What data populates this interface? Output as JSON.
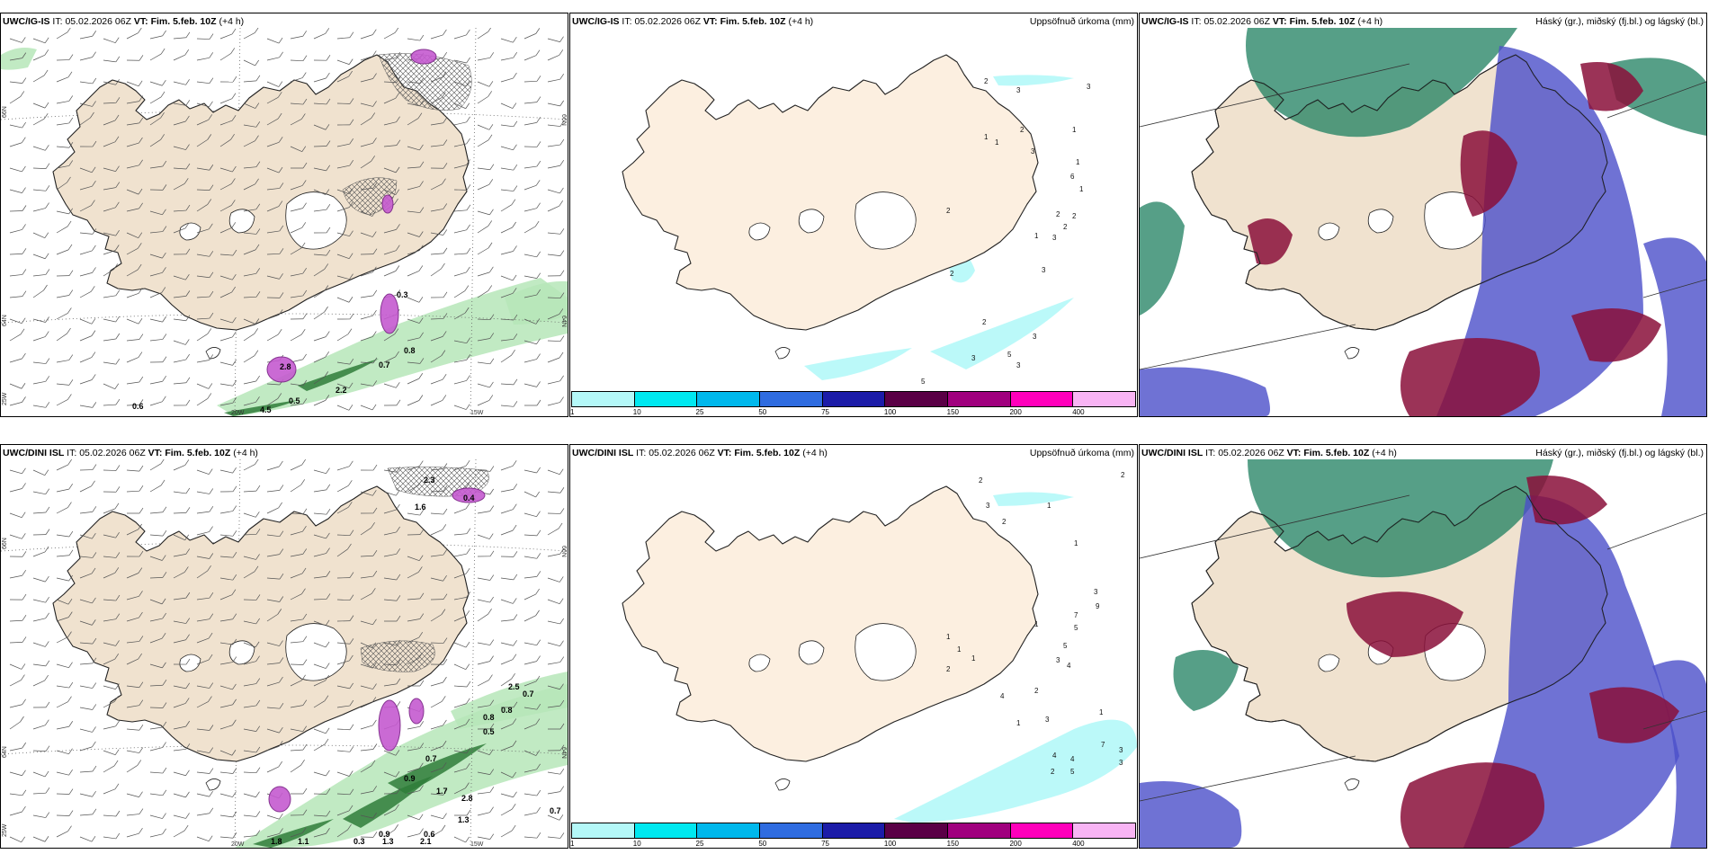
{
  "colors": {
    "land": "#f0e2cf",
    "land_precip": "#fcefe0",
    "snow": "#ffffff",
    "coast": "#222222",
    "precip_green": "#b6e6b8",
    "precip_green_dark": "#2f7d3a",
    "precip_magenta": "#c55ad0",
    "cloud_high": "#1e7f5f",
    "cloud_mid": "#8a0f3a",
    "cloud_low": "#4b4fc9"
  },
  "panels": [
    {
      "model": "UWC/IG-IS",
      "it_label": "IT:",
      "it_value": "05.02.2026 06Z",
      "vt_label": "VT:",
      "vt_value": "Fim. 5.feb. 10Z",
      "lead": "(+4 h)",
      "subtitle": "",
      "axis_labels": [
        "66N",
        "64N",
        "25W",
        "20W",
        "15W",
        "66N",
        "64N"
      ],
      "values": [
        "0.6",
        "0.5",
        "2.2",
        "0.7",
        "0.8",
        "2.8",
        "4.5",
        "0.3"
      ]
    },
    {
      "model": "UWC/IG-IS",
      "it_label": "IT:",
      "it_value": "05.02.2026 06Z",
      "vt_label": "VT:",
      "vt_value": "Fim. 5.feb. 10Z",
      "lead": "(+4 h)",
      "subtitle": "Uppsöfnuð úrkoma (mm)",
      "values": [
        "2",
        "3",
        "3",
        "1",
        "1",
        "2",
        "3",
        "1",
        "6",
        "1",
        "2",
        "2",
        "2",
        "1",
        "2",
        "3",
        "2",
        "3",
        "3",
        "3",
        "5",
        "3",
        "5",
        "2",
        "1"
      ]
    },
    {
      "model": "UWC/IG-IS",
      "it_label": "IT:",
      "it_value": "05.02.2026 06Z",
      "vt_label": "VT:",
      "vt_value": "Fim. 5.feb. 10Z",
      "lead": "(+4 h)",
      "subtitle": "Háský (gr.), miðský (fj.bl.) og lágský (bl.)"
    },
    {
      "model": "UWC/DINI ISL",
      "it_label": "IT:",
      "it_value": "05.02.2026 06Z",
      "vt_label": "VT:",
      "vt_value": "Fim. 5.feb. 10Z",
      "lead": "(+4 h)",
      "subtitle": "",
      "axis_labels": [
        "66N",
        "64N",
        "25W",
        "20W",
        "15W",
        "66N",
        "64N"
      ],
      "values": [
        "2.3",
        "1.6",
        "0.4",
        "2.5",
        "0.7",
        "0.8",
        "0.5",
        "0.8",
        "0.7",
        "0.9",
        "1.7",
        "2.8",
        "1.3",
        "0.6",
        "0.9",
        "1.3",
        "1.1",
        "0.3",
        "2.1",
        "1.8",
        "0.7"
      ]
    },
    {
      "model": "UWC/DINI ISL",
      "it_label": "IT:",
      "it_value": "05.02.2026 06Z",
      "vt_label": "VT:",
      "vt_value": "Fim. 5.feb. 10Z",
      "lead": "(+4 h)",
      "subtitle": "Uppsöfnuð úrkoma (mm)",
      "values": [
        "2",
        "2",
        "3",
        "1",
        "2",
        "1",
        "3",
        "9",
        "7",
        "5",
        "5",
        "3",
        "4",
        "1",
        "1",
        "1",
        "1",
        "2",
        "4",
        "2",
        "1",
        "3",
        "4",
        "4",
        "7",
        "3",
        "3",
        "2",
        "5",
        "1"
      ]
    },
    {
      "model": "UWC/DINI ISL",
      "it_label": "IT:",
      "it_value": "05.02.2026 06Z",
      "vt_label": "VT:",
      "vt_value": "Fim. 5.feb. 10Z",
      "lead": "(+4 h)",
      "subtitle": "Háský (gr.), miðský (fj.bl.) og lágský (bl.)"
    }
  ],
  "legend": {
    "colors": [
      "#b4f8f8",
      "#00e8f0",
      "#00b8ec",
      "#2f6ce0",
      "#1c1ca8",
      "#5a0046",
      "#a0007e",
      "#ff00bb",
      "#f8b4f4"
    ],
    "labels": [
      "1",
      "10",
      "25",
      "50",
      "75",
      "100",
      "150",
      "200",
      "400"
    ]
  }
}
